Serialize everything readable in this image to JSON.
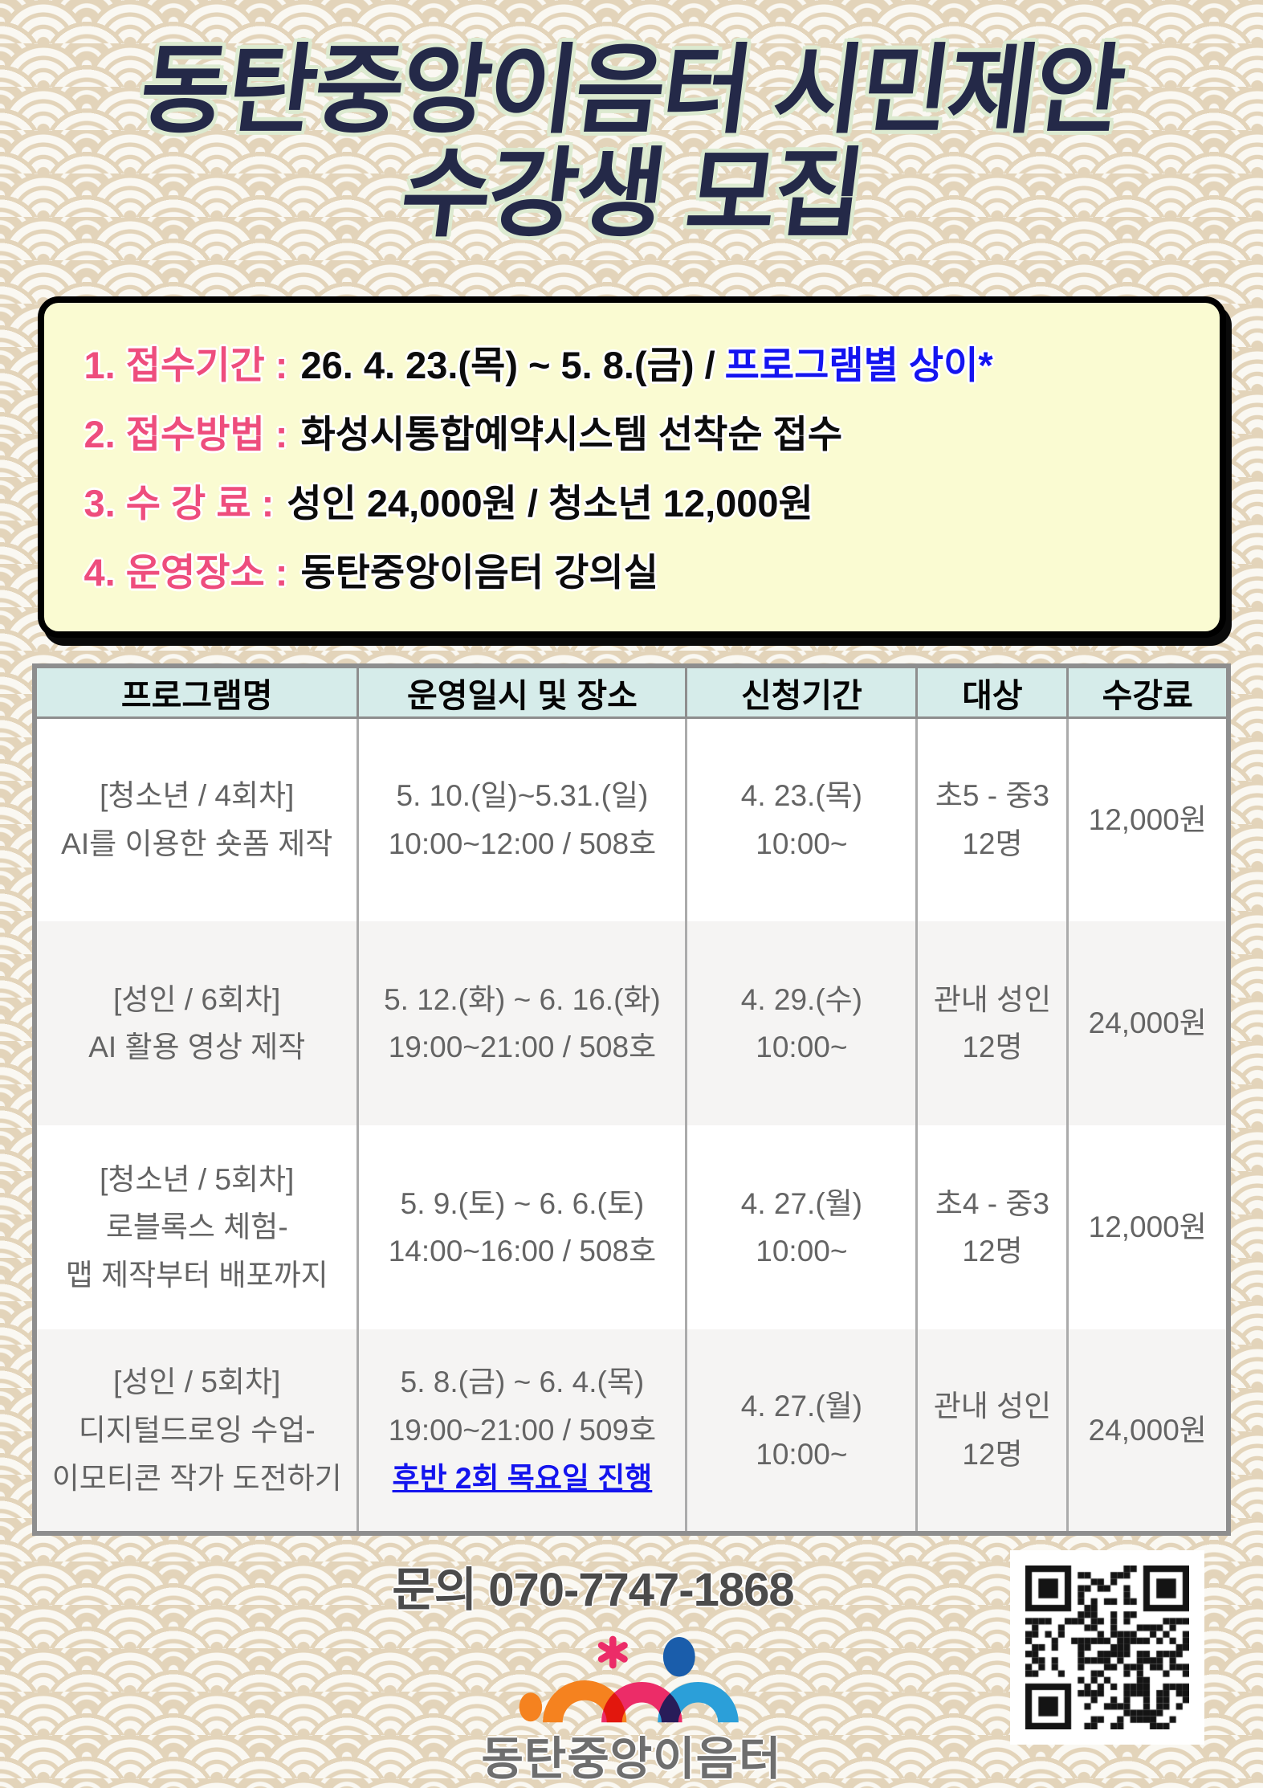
{
  "title": {
    "line1": "동탄중앙이음터 시민제안",
    "line2": "수강생 모집"
  },
  "info_box": {
    "items": [
      {
        "label": "1. 접수기간 :",
        "value": "26. 4. 23.(목) ~ 5. 8.(금) /",
        "highlight": "프로그램별 상이*"
      },
      {
        "label": "2. 접수방법 :",
        "value": "화성시통합예약시스템 선착순 접수",
        "highlight": ""
      },
      {
        "label": "3. 수 강 료 :",
        "value": "성인 24,000원 / 청소년 12,000원",
        "highlight": ""
      },
      {
        "label": "4. 운영장소 :",
        "value": "동탄중앙이음터 강의실",
        "highlight": ""
      }
    ]
  },
  "table": {
    "headers": [
      "프로그램명",
      "운영일시 및 장소",
      "신청기간",
      "대상",
      "수강료"
    ],
    "rows": [
      {
        "program": [
          "[청소년 / 4회차]",
          "AI를 이용한 숏폼 제작"
        ],
        "schedule": [
          "5. 10.(일)~5.31.(일)",
          "10:00~12:00 / 508호"
        ],
        "schedule_note": "",
        "apply": [
          "4. 23.(목)",
          "10:00~"
        ],
        "target": [
          "초5 - 중3",
          "12명"
        ],
        "fee": "12,000원"
      },
      {
        "program": [
          "[성인 / 6회차]",
          "AI 활용 영상 제작"
        ],
        "schedule": [
          "5. 12.(화) ~ 6. 16.(화)",
          "19:00~21:00 / 508호"
        ],
        "schedule_note": "",
        "apply": [
          "4. 29.(수)",
          "10:00~"
        ],
        "target": [
          "관내 성인",
          "12명"
        ],
        "fee": "24,000원"
      },
      {
        "program": [
          "[청소년 / 5회차]",
          "로블록스 체험-",
          "맵 제작부터 배포까지"
        ],
        "schedule": [
          "5. 9.(토) ~ 6. 6.(토)",
          "14:00~16:00 / 508호"
        ],
        "schedule_note": "",
        "apply": [
          "4. 27.(월)",
          "10:00~"
        ],
        "target": [
          "초4 - 중3",
          "12명"
        ],
        "fee": "12,000원"
      },
      {
        "program": [
          "[성인 / 5회차]",
          "디지털드로잉 수업-",
          "이모티콘 작가 도전하기"
        ],
        "schedule": [
          "5. 8.(금) ~ 6. 4.(목)",
          "19:00~21:00 / 509호"
        ],
        "schedule_note": "후반 2회 목요일 진행",
        "apply": [
          "4. 27.(월)",
          "10:00~"
        ],
        "target": [
          "관내 성인",
          "12명"
        ],
        "fee": "24,000원"
      }
    ]
  },
  "footer": {
    "inquiry_label": "문의",
    "phone": "070-7747-1868",
    "logo_text": "동탄중앙이음터"
  },
  "icons": {
    "qr": "qr-code",
    "logo": "ieumteo-people-arches-logo"
  },
  "colors": {
    "title_navy": "#242948",
    "title_outline_green": "#dcead0",
    "box_yellow": "#fafbd2",
    "label_pink": "#ee4d7d",
    "highlight_blue": "#1414f0",
    "header_cyan": "#d6ecea",
    "table_border_gray": "#8e8e8e",
    "table_text_gray": "#646464",
    "pattern_tan": "#e3d4ba",
    "logo_orange": "#f5821f",
    "logo_pink": "#ec2c68",
    "logo_lightblue": "#2b9fd9",
    "logo_darkblue": "#1a5dab"
  }
}
